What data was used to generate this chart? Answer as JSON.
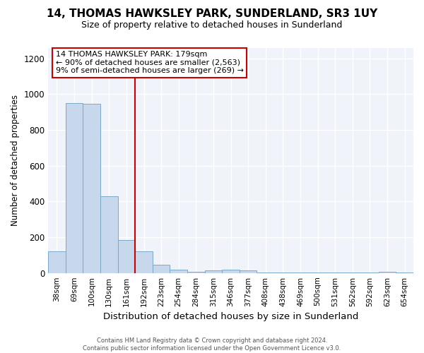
{
  "title": "14, THOMAS HAWKSLEY PARK, SUNDERLAND, SR3 1UY",
  "subtitle": "Size of property relative to detached houses in Sunderland",
  "xlabel": "Distribution of detached houses by size in Sunderland",
  "ylabel": "Number of detached properties",
  "footer_line1": "Contains HM Land Registry data © Crown copyright and database right 2024.",
  "footer_line2": "Contains public sector information licensed under the Open Government Licence v3.0.",
  "categories": [
    "38sqm",
    "69sqm",
    "100sqm",
    "130sqm",
    "161sqm",
    "192sqm",
    "223sqm",
    "254sqm",
    "284sqm",
    "315sqm",
    "346sqm",
    "377sqm",
    "408sqm",
    "438sqm",
    "469sqm",
    "500sqm",
    "531sqm",
    "562sqm",
    "592sqm",
    "623sqm",
    "654sqm"
  ],
  "values": [
    120,
    950,
    948,
    428,
    183,
    120,
    47,
    20,
    5,
    15,
    18,
    15,
    3,
    3,
    3,
    3,
    3,
    3,
    3,
    8,
    3
  ],
  "bar_color": "#c8d8ec",
  "bar_edge_color": "#7aaac8",
  "vline_x_index": 5,
  "annotation_line1": "14 THOMAS HAWKSLEY PARK: 179sqm",
  "annotation_line2": "← 90% of detached houses are smaller (2,563)",
  "annotation_line3": "9% of semi-detached houses are larger (269) →",
  "annotation_box_facecolor": "#ffffff",
  "annotation_box_edgecolor": "#cc0000",
  "vline_color": "#cc0000",
  "ylim": [
    0,
    1260
  ],
  "yticks": [
    0,
    200,
    400,
    600,
    800,
    1000,
    1200
  ],
  "background_color": "#ffffff",
  "plot_bg_color": "#f0f4fa",
  "grid_color": "#ffffff",
  "title_fontsize": 11,
  "subtitle_fontsize": 9
}
